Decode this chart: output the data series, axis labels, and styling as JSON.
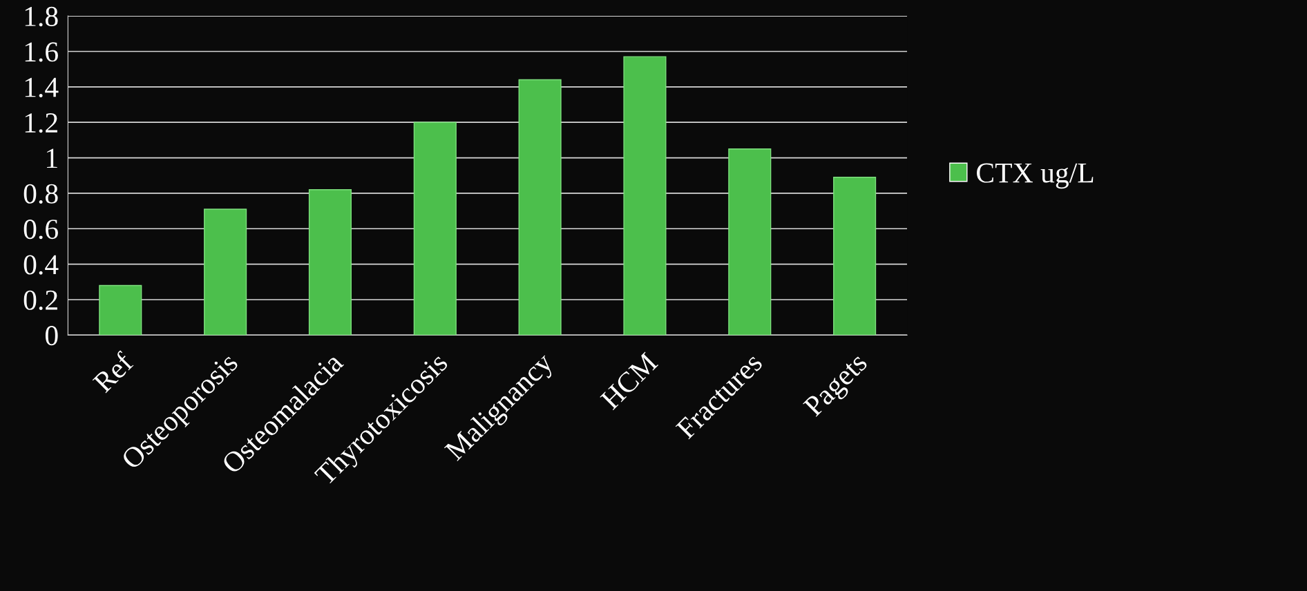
{
  "chart_data": {
    "type": "bar",
    "categories": [
      "Ref",
      "Osteoporosis",
      "Osteomalacia",
      "Thyrotoxicosis",
      "Malignancy",
      "HCM",
      "Fractures",
      "Pagets"
    ],
    "series": [
      {
        "name": "CTX ug/L",
        "color": "#4cbf4c",
        "values": [
          0.28,
          0.71,
          0.82,
          1.2,
          1.44,
          1.57,
          1.05,
          0.89
        ]
      }
    ],
    "ylim": [
      0,
      1.8
    ],
    "yticks": [
      0,
      {
        "value": 0.2,
        "label": "0.2"
      },
      {
        "value": 0.4,
        "label": "0.4"
      },
      {
        "value": 0.6,
        "label": "0.6"
      },
      {
        "value": 0.8,
        "label": "0.8"
      },
      1,
      {
        "value": 1.2,
        "label": "1.2"
      },
      {
        "value": 1.4,
        "label": "1.4"
      },
      {
        "value": 1.6,
        "label": "1.6"
      },
      {
        "value": 1.8,
        "label": "1.8"
      }
    ],
    "grid": "y",
    "legend": "right"
  }
}
